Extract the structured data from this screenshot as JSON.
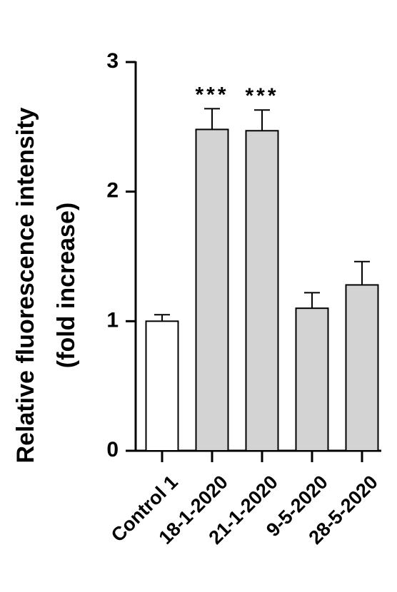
{
  "chart_data": {
    "type": "bar",
    "ylabel": [
      "Relative fluorescence intensity",
      "(fold increase)"
    ],
    "categories": [
      "Control 1",
      "18-1-2020",
      "21-1-2020",
      "9-5-2020",
      "28-5-2020"
    ],
    "values": [
      1.0,
      2.48,
      2.47,
      1.1,
      1.28
    ],
    "errors": [
      0.05,
      0.16,
      0.16,
      0.12,
      0.18
    ],
    "colors": [
      "#ffffff",
      "#d3d3d3",
      "#d3d3d3",
      "#d3d3d3",
      "#d3d3d3"
    ],
    "ylim": [
      0,
      3
    ],
    "yticks": [
      0,
      1,
      2,
      3
    ],
    "annotations": [
      {
        "text": "***",
        "x": "18-1-2020"
      },
      {
        "text": "***",
        "x": "21-1-2020"
      }
    ]
  }
}
